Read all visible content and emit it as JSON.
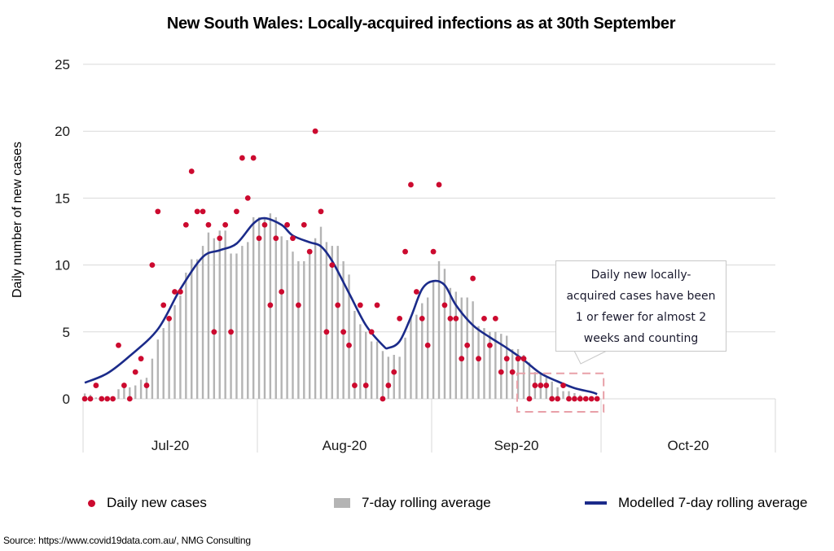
{
  "chart_data": {
    "type": "bar+scatter+line",
    "title": "New South Wales: Locally-acquired infections as at 30th September",
    "xlabel": "",
    "ylabel": "Daily number  of new cases",
    "ylim": [
      0,
      25
    ],
    "yticks": [
      0,
      5,
      10,
      15,
      20,
      25
    ],
    "grid": true,
    "x_start": "2020-07-01",
    "x_end_axis": "2020-10-31",
    "month_labels": [
      "Jul-20",
      "Aug-20",
      "Sep-20",
      "Oct-20"
    ],
    "legend_position": "bottom",
    "series": [
      {
        "name": "Daily new cases",
        "type": "scatter",
        "color": "#cc0a2f",
        "values": [
          0,
          0,
          1,
          0,
          0,
          0,
          4,
          1,
          0,
          2,
          3,
          1,
          10,
          14,
          7,
          6,
          8,
          8,
          13,
          17,
          14,
          14,
          13,
          5,
          12,
          13,
          5,
          14,
          18,
          15,
          18,
          12,
          13,
          7,
          12,
          8,
          13,
          12,
          7,
          13,
          11,
          20,
          14,
          5,
          10,
          7,
          5,
          4,
          1,
          7,
          1,
          5,
          7,
          0,
          1,
          2,
          6,
          11,
          16,
          8,
          6,
          4,
          11,
          16,
          7,
          6,
          6,
          3,
          4,
          9,
          3,
          6,
          4,
          6,
          2,
          3,
          2,
          3,
          3,
          0,
          1,
          1,
          1,
          0,
          0,
          1,
          0,
          0,
          0,
          0,
          0,
          0
        ]
      },
      {
        "name": "7-day rolling average",
        "type": "bar",
        "color": "#b4b4b4",
        "leading_values": [
          0.4,
          0.3,
          0.1,
          0.0,
          0.0,
          0.0
        ],
        "window": 7
      },
      {
        "name": "Modelled 7-day rolling average",
        "type": "line",
        "color": "#1b2b8a",
        "points": [
          [
            0,
            1.2
          ],
          [
            4,
            1.9
          ],
          [
            8,
            3.2
          ],
          [
            13,
            5.2
          ],
          [
            17,
            8.2
          ],
          [
            21,
            10.6
          ],
          [
            24,
            11.1
          ],
          [
            27,
            11.6
          ],
          [
            30,
            13.1
          ],
          [
            32,
            13.5
          ],
          [
            35,
            13.0
          ],
          [
            37,
            12.2
          ],
          [
            40,
            11.7
          ],
          [
            42,
            11.4
          ],
          [
            44,
            10.3
          ],
          [
            47,
            7.9
          ],
          [
            50,
            5.5
          ],
          [
            53,
            4.0
          ],
          [
            54,
            3.8
          ],
          [
            56,
            4.3
          ],
          [
            58,
            6.1
          ],
          [
            60,
            8.2
          ],
          [
            62,
            8.8
          ],
          [
            64,
            8.5
          ],
          [
            66,
            7.0
          ],
          [
            69,
            5.5
          ],
          [
            72,
            4.6
          ],
          [
            75,
            3.8
          ],
          [
            78,
            2.9
          ],
          [
            81,
            1.9
          ],
          [
            84,
            1.3
          ],
          [
            87,
            0.8
          ],
          [
            90,
            0.5
          ],
          [
            91,
            0.35
          ]
        ]
      }
    ],
    "annotation": {
      "text": "Daily new locally-\nacquired cases have been\n1 or fewer  for almost 2\nweeks and counting",
      "highlight_range_days": [
        79,
        91
      ],
      "highlight_color": "#e8a0a8"
    }
  },
  "legend": {
    "dot_label": "Daily new cases",
    "bar_label": "7-day rolling average",
    "line_label": "Modelled 7-day rolling average"
  },
  "source": "Source: https://www.covid19data.com.au/, NMG Consulting"
}
